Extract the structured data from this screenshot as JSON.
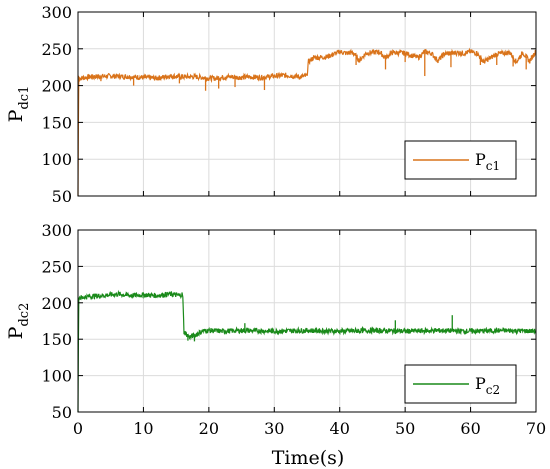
{
  "chart_data": [
    {
      "type": "line",
      "ylabel_main": "P",
      "ylabel_sub": "dc1",
      "xlim": [
        0,
        70
      ],
      "ylim": [
        50,
        300
      ],
      "xticks": [
        0,
        10,
        20,
        30,
        40,
        50,
        60,
        70
      ],
      "yticks": [
        50,
        100,
        150,
        200,
        250,
        300
      ],
      "grid": true,
      "legend_position": "lower-right",
      "series": [
        {
          "name_main": "P",
          "name_sub": "c1",
          "color": "#D9731A",
          "x": [
            0,
            0.1,
            0.25,
            2,
            5,
            8,
            10,
            12,
            14,
            16,
            18,
            19,
            20,
            21,
            23,
            25,
            26,
            28,
            30,
            32,
            34,
            35,
            35.2,
            36,
            38,
            40,
            41,
            42,
            43,
            44,
            45,
            46,
            47,
            48,
            50,
            52,
            53,
            54,
            55,
            56,
            58,
            59,
            60,
            61,
            62,
            64,
            66,
            67,
            68,
            69,
            70
          ],
          "y": [
            50,
            212,
            210,
            212,
            213,
            212,
            211,
            210,
            213,
            212,
            212,
            211,
            210,
            210,
            212,
            211,
            212,
            211,
            213,
            214,
            212,
            213,
            232,
            238,
            239,
            246,
            244,
            245,
            234,
            244,
            245,
            246,
            238,
            245,
            244,
            238,
            246,
            244,
            234,
            243,
            245,
            244,
            246,
            244,
            232,
            243,
            245,
            232,
            245,
            233,
            247
          ],
          "dips": [
            [
              3.5,
              206
            ],
            [
              8.5,
              200
            ],
            [
              15.5,
              203
            ],
            [
              19.5,
              193
            ],
            [
              21.5,
              196
            ],
            [
              24,
              198
            ],
            [
              28.5,
              194
            ],
            [
              42.5,
              228
            ],
            [
              47,
              222
            ],
            [
              50,
              232
            ],
            [
              53,
              213
            ],
            [
              57,
              225
            ],
            [
              61.5,
              228
            ],
            [
              64,
              228
            ],
            [
              66.5,
              226
            ],
            [
              68.5,
              222
            ]
          ]
        }
      ]
    },
    {
      "type": "line",
      "xlabel": "Time(s)",
      "ylabel_main": "P",
      "ylabel_sub": "dc2",
      "xlim": [
        0,
        70
      ],
      "ylim": [
        50,
        300
      ],
      "xticks": [
        0,
        10,
        20,
        30,
        40,
        50,
        60,
        70
      ],
      "yticks": [
        50,
        100,
        150,
        200,
        250,
        300
      ],
      "grid": true,
      "legend_position": "lower-right",
      "series": [
        {
          "name_main": "P",
          "name_sub": "c2",
          "color": "#1A8A1A",
          "x": [
            0,
            0.1,
            0.25,
            2,
            4,
            6,
            8,
            10,
            12,
            14,
            15.5,
            16,
            16.2,
            17,
            18,
            19,
            20,
            22,
            25,
            30,
            35,
            40,
            45,
            50,
            55,
            60,
            65,
            70
          ],
          "y": [
            50,
            205,
            207,
            209,
            210,
            212,
            210,
            211,
            210,
            212,
            210,
            212,
            160,
            153,
            156,
            161,
            162,
            161,
            162,
            161,
            162,
            161,
            162,
            161,
            162,
            161,
            162,
            161
          ],
          "dips": [
            [
              25.5,
              172
            ],
            [
              48.5,
              176
            ],
            [
              57.2,
              183
            ],
            [
              16.8,
              148
            ],
            [
              17.8,
              147
            ]
          ]
        }
      ]
    }
  ]
}
